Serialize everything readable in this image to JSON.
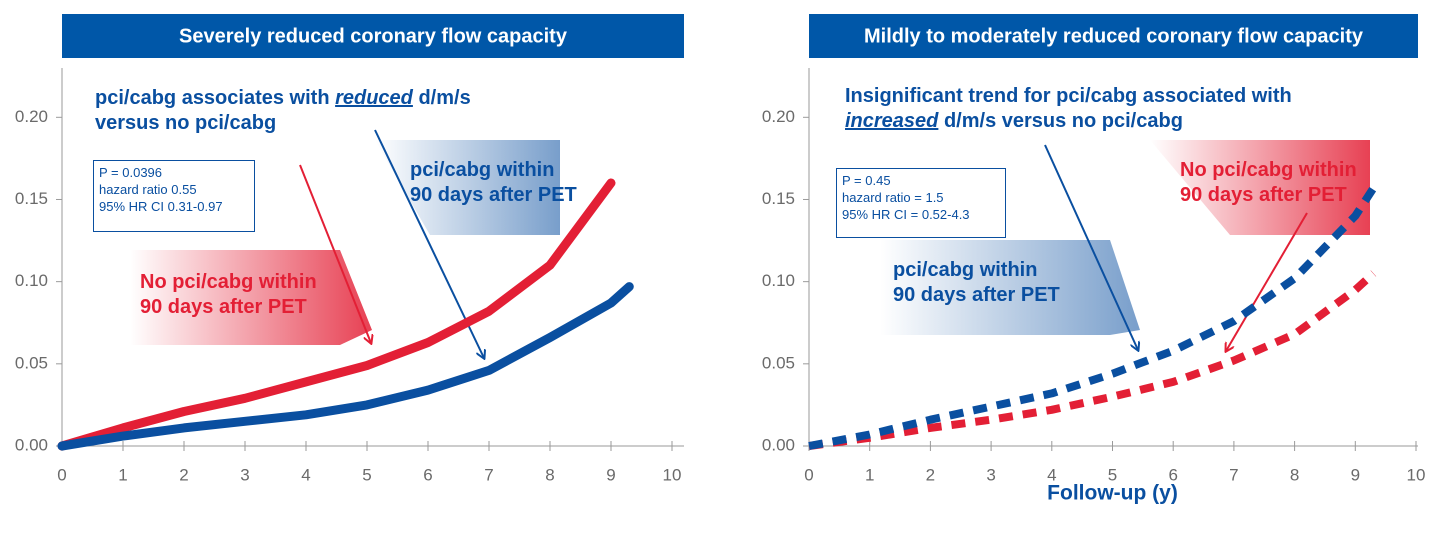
{
  "chart_data": [
    {
      "type": "line",
      "title": "Severely reduced coronary flow capacity",
      "annotation": [
        "pci/cabg associates with",
        "reduced",
        "d/m/s versus no pci/cabg"
      ],
      "stats": [
        "P = 0.0396",
        "hazard ratio 0.55",
        "95% HR CI 0.31-0.97"
      ],
      "line_style": "solid",
      "xlim": [
        0,
        10
      ],
      "xticks": [
        0,
        1,
        2,
        3,
        4,
        5,
        6,
        7,
        8,
        9,
        10
      ],
      "ylim": [
        0,
        0.23
      ],
      "yticks": [
        {
          "value": 0,
          "label": "0.00"
        },
        0.05,
        {
          "value": 0.1,
          "label": "0.10"
        },
        0.15,
        {
          "value": 0.2,
          "label": "0.20"
        }
      ],
      "series": [
        {
          "name": "No pci/cabg within 90 days after PET",
          "color": "#e31f35",
          "x": [
            0,
            1,
            2,
            3,
            4,
            5,
            6,
            7,
            8,
            9
          ],
          "values": [
            0,
            0.011,
            0.021,
            0.029,
            0.039,
            0.049,
            0.063,
            0.082,
            0.11,
            0.16
          ]
        },
        {
          "name": "pci/cabg within 90 days after PET",
          "color": "#0a4fa0",
          "x": [
            0,
            1,
            2,
            3,
            4,
            5,
            6,
            7,
            8,
            9,
            9.3
          ],
          "values": [
            0,
            0.006,
            0.011,
            0.015,
            0.019,
            0.025,
            0.034,
            0.046,
            0.066,
            0.087,
            0.097
          ]
        }
      ]
    },
    {
      "type": "line",
      "title": "Mildly to moderately reduced coronary flow capacity",
      "xlabel": "Follow-up (y)",
      "annotation": [
        "Insignificant trend for pci/cabg associated with",
        "increased",
        "d/m/s versus no pci/cabg"
      ],
      "stats": [
        "P = 0.45",
        "hazard ratio = 1.5",
        "95% HR CI = 0.52-4.3"
      ],
      "line_style": "dashed",
      "xlim": [
        0,
        10
      ],
      "xticks": [
        0,
        1,
        2,
        3,
        4,
        5,
        6,
        7,
        8,
        9,
        10
      ],
      "ylim": [
        0,
        0.23
      ],
      "yticks": [
        {
          "value": 0,
          "label": "0.00"
        },
        0.05,
        {
          "value": 0.1,
          "label": "0.10"
        },
        0.15,
        {
          "value": 0.2,
          "label": "0.20"
        }
      ],
      "series": [
        {
          "name": "No pci/cabg within 90 days after PET",
          "color": "#e31f35",
          "x": [
            0,
            1,
            2,
            3,
            4,
            5,
            6,
            7,
            8,
            9,
            9.3
          ],
          "values": [
            0,
            0.005,
            0.011,
            0.016,
            0.022,
            0.03,
            0.039,
            0.052,
            0.068,
            0.095,
            0.105
          ]
        },
        {
          "name": "pci/cabg within 90 days after PET",
          "color": "#0a4fa0",
          "x": [
            0,
            1,
            2,
            3,
            4,
            5,
            6,
            7,
            8,
            9,
            9.3
          ],
          "values": [
            0,
            0.007,
            0.016,
            0.024,
            0.032,
            0.044,
            0.058,
            0.076,
            0.102,
            0.14,
            0.157
          ]
        }
      ]
    }
  ]
}
